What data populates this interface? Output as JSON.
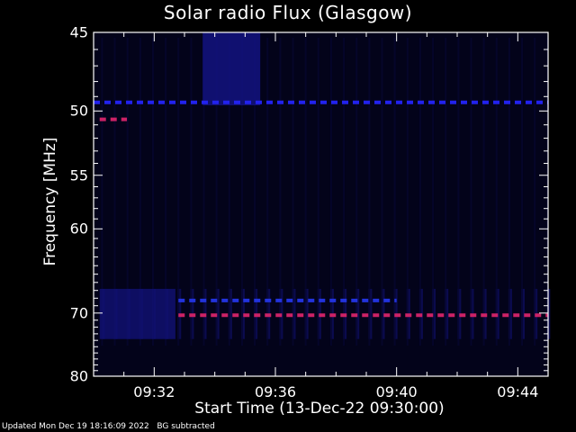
{
  "chart_data": {
    "type": "heatmap",
    "title": "Solar radio Flux (Glasgow)",
    "ylabel": "Frequency [MHz]",
    "xlabel": "Start Time (13-Dec-22 09:30:00)",
    "y_ticks": [
      45,
      50,
      55,
      60,
      70,
      80
    ],
    "x_ticks": [
      "09:32",
      "09:36",
      "09:40",
      "09:44"
    ],
    "x_tick_minutes": [
      2,
      6,
      10,
      14
    ],
    "xlim_minutes": [
      0,
      15
    ],
    "ylim_mhz": [
      45,
      80
    ],
    "y_scale": "reciprocal",
    "features": [
      {
        "kind": "line",
        "freq_mhz": 49.4,
        "t0": 0.0,
        "t1": 15.0,
        "color": "#2222ee"
      },
      {
        "kind": "line",
        "freq_mhz": 50.6,
        "t0": 0.2,
        "t1": 1.1,
        "color": "#cc2266"
      },
      {
        "kind": "line",
        "freq_mhz": 68.3,
        "t0": 2.8,
        "t1": 10.0,
        "color": "#2233dd"
      },
      {
        "kind": "line",
        "freq_mhz": 70.3,
        "t0": 2.8,
        "t1": 15.0,
        "color": "#cc2266"
      },
      {
        "kind": "block",
        "freq_lo_mhz": 66.8,
        "freq_hi_mhz": 73.8,
        "t0": 0.2,
        "t1": 2.7,
        "color": "#101070"
      },
      {
        "kind": "block",
        "freq_lo_mhz": 45.0,
        "freq_hi_mhz": 49.6,
        "t0": 3.6,
        "t1": 5.5,
        "color": "#131380"
      }
    ]
  },
  "footer": {
    "updated": "Updated Mon Dec 19 18:16:09 2022",
    "note": "BG subtracted"
  }
}
